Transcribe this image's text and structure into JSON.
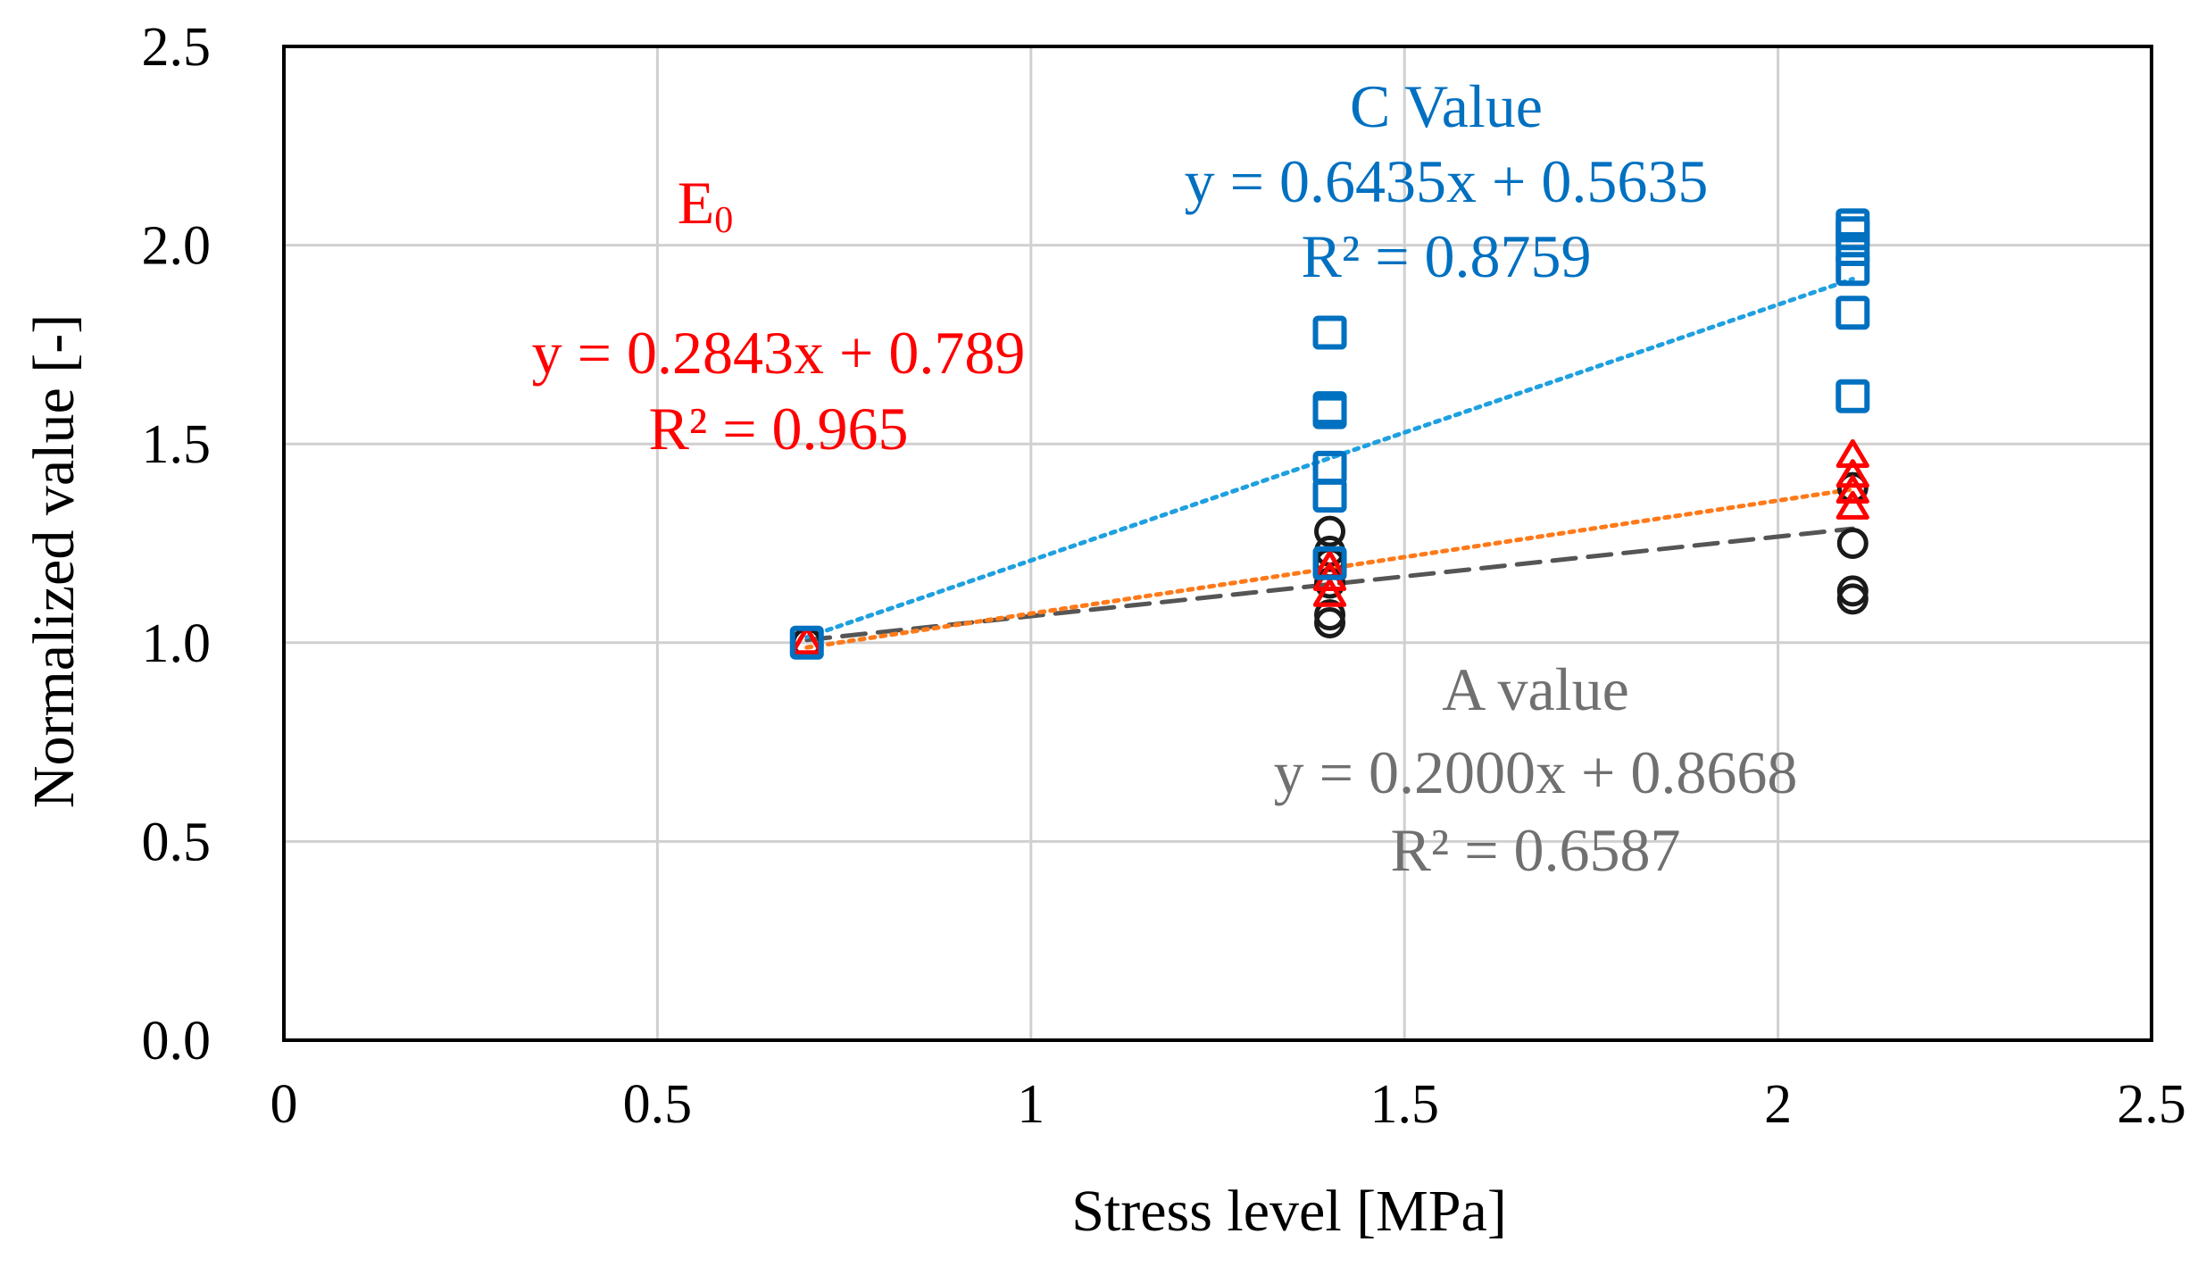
{
  "chart_data": {
    "type": "scatter",
    "title": "",
    "xlabel": "Stress level [MPa]",
    "ylabel": "Normalized  value [-]",
    "xlim": [
      0,
      2.5
    ],
    "ylim": [
      0,
      2.5
    ],
    "x_ticks": [
      "0",
      "0.5",
      "1",
      "1.5",
      "2",
      "2.5"
    ],
    "y_ticks": [
      "0.0",
      "0.5",
      "1.0",
      "1.5",
      "2.0",
      "2.5"
    ],
    "grid": true,
    "series": [
      {
        "name": "A value",
        "marker": "circle",
        "color": "#1a1a1a",
        "x": [
          0.7,
          1.4,
          1.4,
          1.4,
          1.4,
          1.4,
          1.4,
          2.1,
          2.1,
          2.1,
          2.1
        ],
        "y": [
          1.0,
          1.05,
          1.07,
          1.15,
          1.2,
          1.23,
          1.28,
          1.11,
          1.13,
          1.25,
          1.39
        ],
        "trendline": {
          "slope": 0.2,
          "intercept": 0.8668,
          "style": "dashed",
          "color": "#555555"
        }
      },
      {
        "name": "E0",
        "marker": "triangle",
        "color": "#ff0000",
        "x": [
          0.7,
          1.4,
          1.4,
          1.4,
          2.1,
          2.1,
          2.1,
          2.1
        ],
        "y": [
          1.0,
          1.12,
          1.16,
          1.19,
          1.34,
          1.38,
          1.42,
          1.47
        ],
        "trendline": {
          "slope": 0.2843,
          "intercept": 0.789,
          "style": "dotted",
          "color": "#ff7a1a"
        }
      },
      {
        "name": "C Value",
        "marker": "square",
        "color": "#0070c0",
        "x": [
          0.7,
          1.4,
          1.4,
          1.4,
          1.4,
          1.4,
          1.4,
          2.1,
          2.1,
          2.1,
          2.1,
          2.1,
          2.1
        ],
        "y": [
          1.0,
          1.2,
          1.37,
          1.44,
          1.58,
          1.59,
          1.78,
          1.62,
          1.83,
          1.94,
          1.99,
          2.03,
          2.05
        ],
        "trendline": {
          "slope": 0.6435,
          "intercept": 0.5635,
          "style": "dotted",
          "color": "#1fa0e0"
        }
      }
    ],
    "annotations": [
      {
        "series": "C Value",
        "lines": [
          "C Value",
          "y = 0.6435x + 0.5635",
          "R² = 0.8759"
        ],
        "color": "#0070c0"
      },
      {
        "series": "E0",
        "lines": [
          "E0",
          "y = 0.2843x + 0.789",
          "R² = 0.965"
        ],
        "color": "#ff0000"
      },
      {
        "series": "A value",
        "lines": [
          "A value",
          "y = 0.2000x + 0.8668",
          "R² = 0.6587"
        ],
        "color": "#707070"
      }
    ]
  }
}
